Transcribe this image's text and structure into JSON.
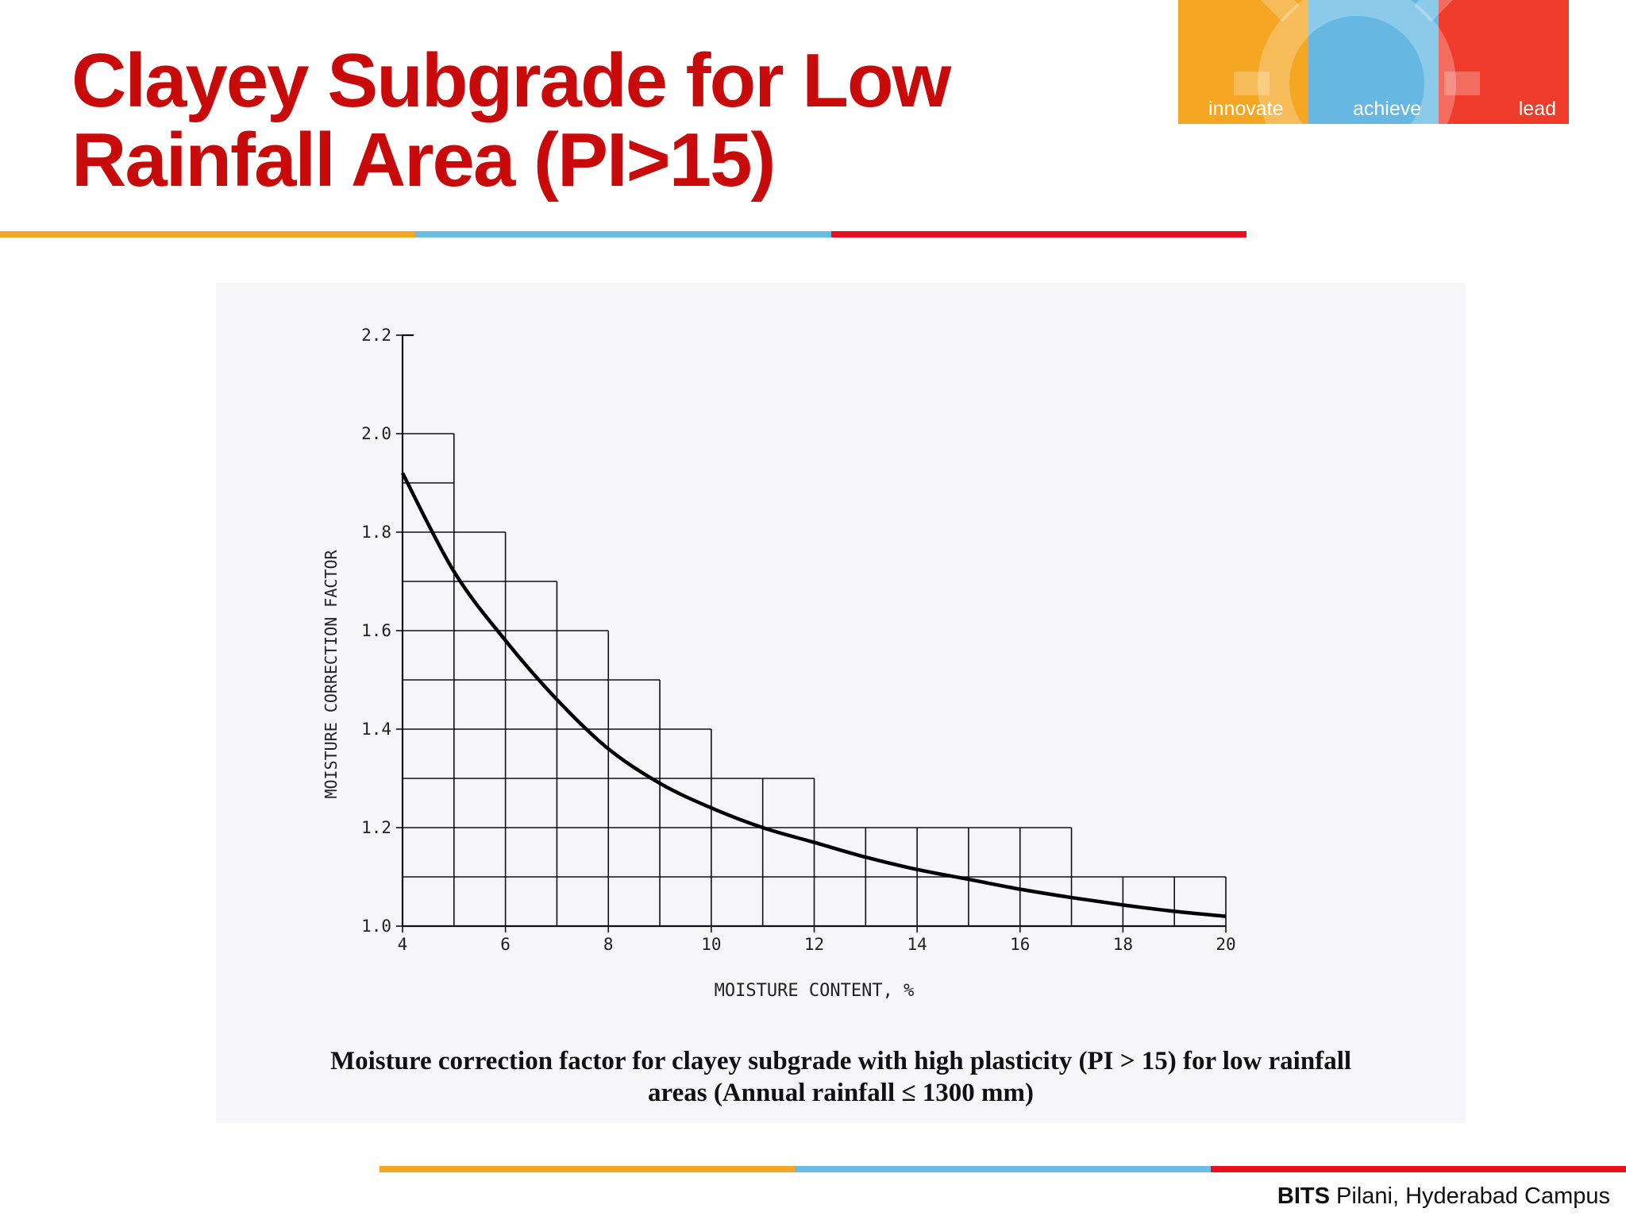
{
  "header": {
    "title_line1": "Clayey Subgrade for Low",
    "title_line2": "Rainfall Area (PI>15)"
  },
  "logo": {
    "words": [
      "innovate",
      "achieve",
      "lead"
    ],
    "colors": [
      "#f5a623",
      "#66b8e2",
      "#ee3b2a"
    ]
  },
  "divider_colors": [
    "#f5a623",
    "#6bbce5",
    "#e8101c"
  ],
  "footer": {
    "brand": "BITS",
    "campus": " Pilani, Hyderabad Campus"
  },
  "chart_data": {
    "type": "line",
    "xlabel": "MOISTURE CONTENT, %",
    "ylabel": "MOISTURE CORRECTION FACTOR",
    "xlim": [
      4,
      20
    ],
    "ylim": [
      1.0,
      2.2
    ],
    "x_ticks": [
      4,
      6,
      8,
      10,
      12,
      14,
      16,
      18,
      20
    ],
    "y_ticks": [
      1.0,
      1.2,
      1.4,
      1.6,
      1.8,
      2.0,
      2.2
    ],
    "y_tick_labels": [
      "1.0",
      "1.2",
      "1.4",
      "1.6",
      "1.8",
      "2.0",
      "2.2"
    ],
    "series": [
      {
        "name": "moisture correction factor",
        "x": [
          4,
          5,
          6,
          7,
          8,
          9,
          10,
          11,
          12,
          13,
          14,
          15,
          16,
          17,
          18,
          19,
          20
        ],
        "y": [
          1.92,
          1.72,
          1.58,
          1.46,
          1.36,
          1.29,
          1.24,
          1.2,
          1.17,
          1.14,
          1.115,
          1.095,
          1.075,
          1.058,
          1.043,
          1.03,
          1.02
        ]
      }
    ],
    "step_bars": [
      {
        "x0": 4,
        "x1": 5,
        "y": 2.0
      },
      {
        "x0": 5,
        "x1": 6,
        "y": 1.8
      },
      {
        "x0": 6,
        "x1": 7,
        "y": 1.7
      },
      {
        "x0": 7,
        "x1": 8,
        "y": 1.6
      },
      {
        "x0": 8,
        "x1": 9,
        "y": 1.5
      },
      {
        "x0": 9,
        "x1": 10,
        "y": 1.4
      },
      {
        "x0": 10,
        "x1": 12,
        "y": 1.3
      },
      {
        "x0": 12,
        "x1": 17,
        "y": 1.2
      },
      {
        "x0": 17,
        "x1": 20,
        "y": 1.1
      }
    ],
    "caption_line1": "Moisture correction factor for clayey subgrade with high plasticity (PI > 15) for low rainfall",
    "caption_line2": "areas (Annual rainfall ≤  1300 mm)"
  }
}
